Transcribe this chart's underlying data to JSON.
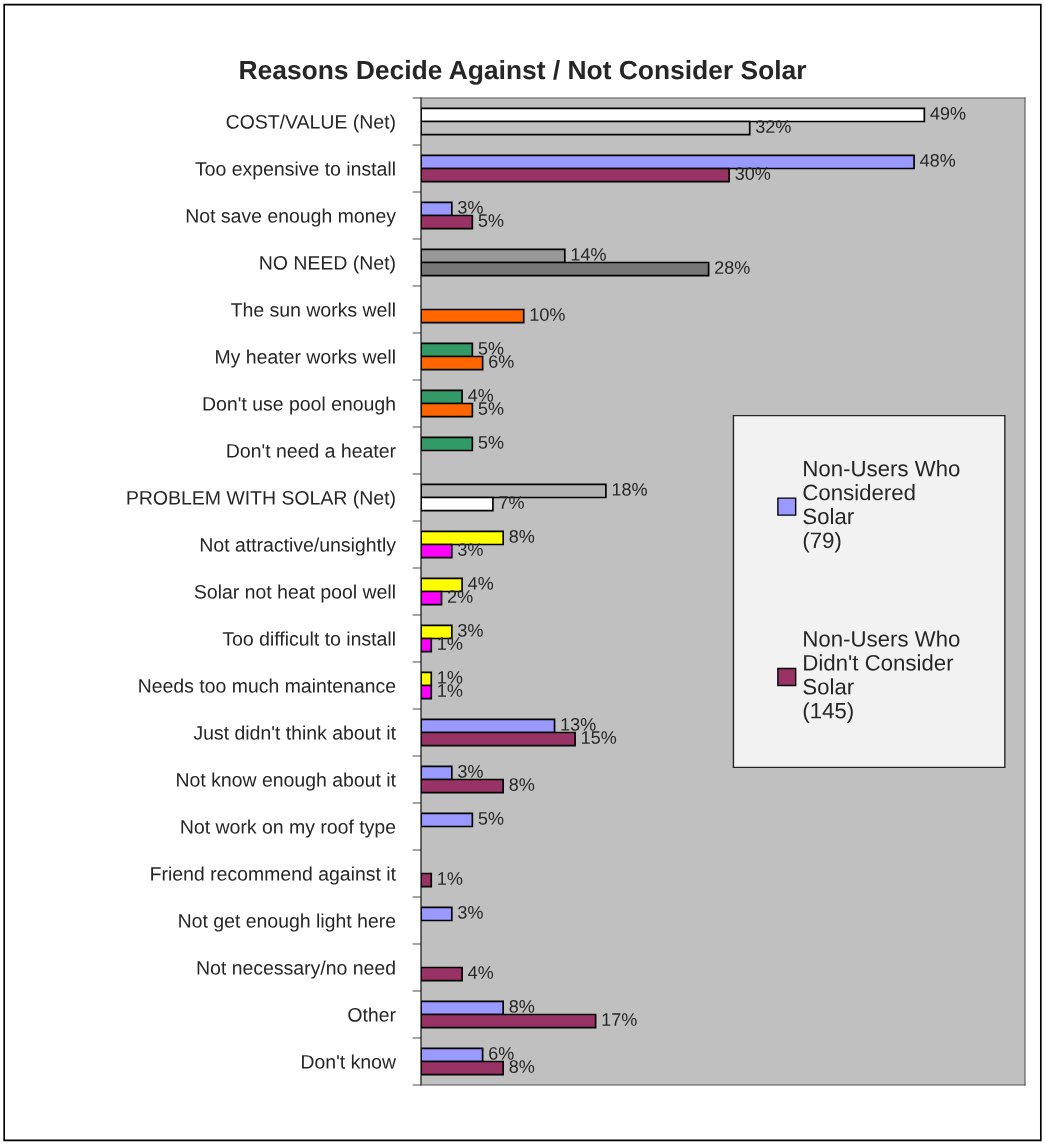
{
  "chart_data": {
    "type": "bar",
    "orientation": "horizontal",
    "title": "Reasons Decide Against / Not Consider Solar",
    "categories": [
      "COST/VALUE (Net)",
      "Too expensive to install",
      "Not save enough money",
      "NO NEED (Net)",
      "The sun works well",
      "My heater works well",
      "Don't use pool enough",
      "Don't need a heater",
      "PROBLEM WITH SOLAR (Net)",
      "Not attractive/unsightly",
      "Solar not heat pool well",
      "Too difficult to install",
      "Needs too much maintenance",
      "Just didn't think about it",
      "Not know enough about it",
      "Not work on my roof type",
      "Friend recommend against it",
      "Not get enough light here",
      "Not necessary/no need",
      "Other",
      "Don't know"
    ],
    "series": [
      {
        "name": "Non-Users Who\nConsidered\nSolar\n(79)",
        "color": "#9999ff",
        "values": [
          49,
          48,
          3,
          14,
          null,
          5,
          4,
          5,
          18,
          8,
          4,
          3,
          1,
          13,
          3,
          5,
          null,
          3,
          null,
          8,
          6
        ],
        "value_labels": [
          "49%",
          "48%",
          "3%",
          "14%",
          null,
          "5%",
          "4%",
          "5%",
          "18%",
          "8%",
          "4%",
          "3%",
          "1%",
          "13%",
          "3%",
          "5%",
          null,
          "3%",
          null,
          "8%",
          "6%"
        ],
        "colors": [
          "#ffffff",
          "#9999ff",
          "#9999ff",
          "#999999",
          null,
          "#339966",
          "#339966",
          "#339966",
          "#b2b2b2",
          "#ffff00",
          "#ffff00",
          "#ffff00",
          "#ffff00",
          "#9999ff",
          "#9999ff",
          "#9999ff",
          null,
          "#9999ff",
          null,
          "#9999ff",
          "#9999ff"
        ]
      },
      {
        "name": "Non-Users Who\nDidn't Consider\nSolar\n(145)",
        "color": "#993366",
        "values": [
          32,
          30,
          5,
          28,
          10,
          6,
          5,
          null,
          7,
          3,
          2,
          1,
          1,
          15,
          8,
          null,
          1,
          null,
          4,
          17,
          8
        ],
        "value_labels": [
          "32%",
          "30%",
          "5%",
          "28%",
          "10%",
          "6%",
          "5%",
          null,
          "7%",
          "3%",
          "2%",
          "1%",
          "1%",
          "15%",
          "8%",
          null,
          "1%",
          null,
          "4%",
          "17%",
          "8%"
        ],
        "colors": [
          "#c0c0c0",
          "#993366",
          "#993366",
          "#777777",
          "#ff6600",
          "#ff6600",
          "#ff6600",
          null,
          "#ffffff",
          "#ff00ff",
          "#ff00ff",
          "#ff00ff",
          "#ff00ff",
          "#993366",
          "#993366",
          null,
          "#993366",
          null,
          "#993366",
          "#993366",
          "#993366"
        ]
      }
    ],
    "legend": "right",
    "grid": false
  }
}
